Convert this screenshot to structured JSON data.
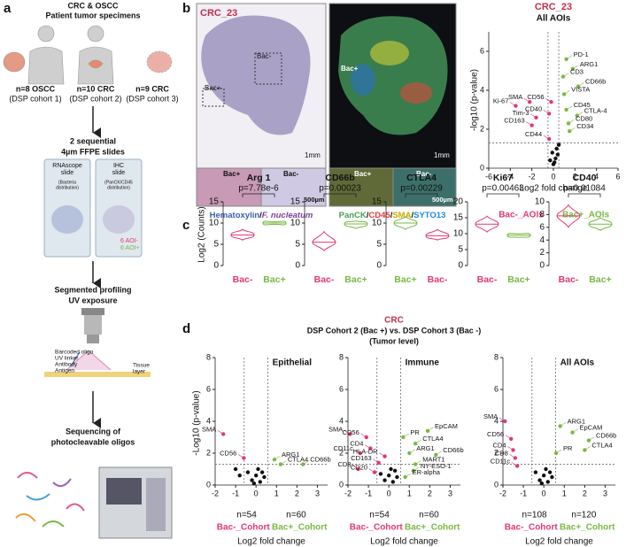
{
  "panel_a": {
    "label": "a",
    "title": [
      "CRC & OSCC",
      "Patient tumor specimens"
    ],
    "cohorts": [
      {
        "n": "n=8 OSCC",
        "sub": "(DSP cohort 1)"
      },
      {
        "n": "n=10 CRC",
        "sub": "(DSP cohort 2)"
      },
      {
        "n": "n=9 CRC",
        "sub": "(DSP cohort 3)"
      }
    ],
    "slides_title": [
      "2 sequential",
      "4µm FFPE slides"
    ],
    "slides": [
      {
        "name": [
          "RNAscope",
          "slide"
        ],
        "note": [
          "(Bacteria",
          "distribution)"
        ]
      },
      {
        "name": [
          "IHC",
          "slide"
        ],
        "note": [
          "(PanCK/CD45",
          "distribution)"
        ]
      }
    ],
    "aoi": [
      "6 AOI-",
      "6 AOI+"
    ],
    "profiling": [
      "Segmented profiling",
      "UV exposure"
    ],
    "diagram": [
      "Barcoded oligo",
      "UV linker",
      "Antibody",
      "Antigen",
      "Tissue",
      "layer"
    ],
    "sequencing": [
      "Sequencing of",
      "photocleavable oligos"
    ]
  },
  "panel_b": {
    "label": "b",
    "sample": "CRC_23",
    "he": {
      "bac_neg": "Bac-",
      "bac_pos": "Bac+",
      "scale1": "1mm",
      "inset_pos": "Bac+",
      "inset_neg": "Bac-",
      "scale2": "500µm"
    },
    "fluor": {
      "bac_pos": "Bac+",
      "scale1": "1mm",
      "inset_pos": "Bac+",
      "inset_neg": "Bac-",
      "scale2": "500µm"
    },
    "caption_he": [
      {
        "text": "Hematoxylin",
        "color": "#3b5ea8"
      },
      {
        "text": "/",
        "color": "#111111"
      },
      {
        "text": "F. nucleatum",
        "color": "#7b3f98"
      }
    ],
    "caption_fluor": [
      {
        "text": "PanCK",
        "color": "#3fa34d"
      },
      {
        "text": "/",
        "color": "#111111"
      },
      {
        "text": "CD45",
        "color": "#e53935"
      },
      {
        "text": "/",
        "color": "#111111"
      },
      {
        "text": "SMA",
        "color": "#c9a800"
      },
      {
        "text": "/",
        "color": "#111111"
      },
      {
        "text": "SYTO13",
        "color": "#1e88e5"
      }
    ],
    "volcano": {
      "type": "scatter",
      "title": "CRC_23",
      "subtitle": "All AOIs",
      "xlabel": "Log2 fold change",
      "ylabel": "-log10 (p-value)",
      "xlim": [
        -6,
        6
      ],
      "xticks": [
        -6,
        -4,
        -2,
        0,
        2,
        4,
        6
      ],
      "ylim": [
        0,
        7
      ],
      "yticks": [
        0,
        2,
        4,
        6
      ],
      "thresholds": {
        "x": [
          -0.5,
          0.5
        ],
        "y": 1.3
      },
      "legend": [
        "Bac-_AOIs",
        "Bac+_AOIs"
      ],
      "colors": {
        "down": "#e03a6e",
        "up": "#78b943",
        "ns": "#111111"
      },
      "points": [
        {
          "label": "PD-1",
          "x": 1.2,
          "y": 5.6
        },
        {
          "label": "ARG1",
          "x": 1.8,
          "y": 5.1
        },
        {
          "label": "CD3",
          "x": 0.9,
          "y": 4.7
        },
        {
          "label": "CD66b",
          "x": 2.3,
          "y": 4.2
        },
        {
          "label": "VISTA",
          "x": 1.0,
          "y": 3.8
        },
        {
          "label": "CD56",
          "x": -0.2,
          "y": 3.4
        },
        {
          "label": "CD45",
          "x": 1.2,
          "y": 3.0
        },
        {
          "label": "CTLA-4",
          "x": 2.2,
          "y": 2.7
        },
        {
          "label": "CD40",
          "x": -0.4,
          "y": 2.8
        },
        {
          "label": "CD80",
          "x": 1.4,
          "y": 2.3
        },
        {
          "label": "CD34",
          "x": 1.5,
          "y": 1.9
        },
        {
          "label": "Ki-67",
          "x": -3.5,
          "y": 3.2
        },
        {
          "label": "SMA",
          "x": -2.2,
          "y": 3.4
        },
        {
          "label": "Tim-3",
          "x": -1.6,
          "y": 2.6
        },
        {
          "label": "CD163",
          "x": -2.0,
          "y": 2.2
        },
        {
          "label": "CD44",
          "x": -0.4,
          "y": 1.5
        },
        {
          "x": 0,
          "y": 0.2
        },
        {
          "x": 0.2,
          "y": 0.5
        },
        {
          "x": -0.1,
          "y": 0.8
        },
        {
          "x": 0.3,
          "y": 1.0
        },
        {
          "x": 0.1,
          "y": 0.3
        },
        {
          "x": -0.3,
          "y": 0.4
        },
        {
          "x": 0.4,
          "y": 0.7
        },
        {
          "x": 0.5,
          "y": 1.2
        }
      ]
    }
  },
  "panel_c": {
    "label": "c",
    "ylabel": "Log2 (Counts)",
    "colors": {
      "Bac-": "#e03a6e",
      "Bac+": "#78b943"
    },
    "violins": [
      {
        "title": "Arg 1",
        "pvalue": "p=7.78e-6",
        "ylim": [
          0,
          15
        ],
        "yticks": [
          0,
          5,
          10,
          15
        ],
        "groups": [
          {
            "name": "Bac-",
            "min": 6,
            "median": 7.2,
            "max": 8.5
          },
          {
            "name": "Bac+",
            "min": 9.7,
            "median": 10,
            "max": 10.3
          }
        ]
      },
      {
        "title": "CD66b",
        "pvalue": "p=0.00023",
        "ylim": [
          0,
          15
        ],
        "yticks": [
          0,
          5,
          10,
          15
        ],
        "groups": [
          {
            "name": "Bac-",
            "min": 3.5,
            "median": 5.5,
            "max": 8
          },
          {
            "name": "Bac+",
            "min": 8.7,
            "median": 9.8,
            "max": 10.5
          }
        ]
      },
      {
        "title": "CTLA4",
        "pvalue": "p=0.00229",
        "ylim": [
          0,
          15
        ],
        "yticks": [
          0,
          5,
          10,
          15
        ],
        "groups": [
          {
            "name": "Bac+",
            "min": 8.5,
            "median": 10,
            "max": 11.5
          },
          {
            "name": "Bac-",
            "min": 6,
            "median": 7,
            "max": 8.5
          }
        ]
      },
      {
        "title": "Ki67",
        "pvalue": "p=0.00463",
        "ylim": [
          0,
          20
        ],
        "yticks": [
          0,
          5,
          10,
          15,
          20
        ],
        "groups": [
          {
            "name": "Bac-",
            "min": 10.5,
            "median": 13,
            "max": 15.5
          },
          {
            "name": "Bac+",
            "min": 8.8,
            "median": 9.5,
            "max": 10
          }
        ]
      },
      {
        "title": "CD40",
        "pvalue": "p=0.01084",
        "ylim": [
          0,
          10
        ],
        "yticks": [
          0,
          2,
          4,
          6,
          8,
          10
        ],
        "groups": [
          {
            "name": "Bac-",
            "min": 6,
            "median": 7.8,
            "max": 9.5
          },
          {
            "name": "Bac+",
            "min": 5.5,
            "median": 6.5,
            "max": 7.5
          }
        ]
      }
    ]
  },
  "panel_d": {
    "label": "d",
    "title": "CRC",
    "subtitle": "DSP Cohort 2 (Bac +) vs. DSP Cohort 3 (Bac -)",
    "note": "(Tumor level)",
    "ylabel": "-Log10 (p-value)",
    "charts": [
      {
        "type": "scatter",
        "subtitle": "Epithelial",
        "xlabel": "Log2 fold change",
        "xlim": [
          -2,
          3.5
        ],
        "xticks": [
          -2,
          -1,
          0,
          1,
          2,
          3
        ],
        "ylim": [
          0,
          8
        ],
        "yticks": [
          0,
          2,
          4,
          6,
          8
        ],
        "thresholds": {
          "x": [
            -0.58,
            0.58
          ],
          "y": 1.3
        },
        "n": [
          "n=54",
          "n=60"
        ],
        "legend": [
          "Bac-_Cohort",
          "Bac+_Cohort"
        ],
        "colors": {
          "down": "#e03a6e",
          "up": "#78b943",
          "ns": "#111111"
        },
        "points": [
          {
            "label": "SMA",
            "x": -1.6,
            "y": 3.2
          },
          {
            "label": "CD56",
            "x": -0.6,
            "y": 1.7
          },
          {
            "label": "ARG1",
            "x": 0.9,
            "y": 1.6
          },
          {
            "label": "CTLA4",
            "x": 1.2,
            "y": 1.3
          },
          {
            "label": "CD66b",
            "x": 2.3,
            "y": 1.3
          },
          {
            "x": -0.2,
            "y": 0.3
          },
          {
            "x": 0,
            "y": 0.6
          },
          {
            "x": 0.2,
            "y": 0.2
          },
          {
            "x": -0.4,
            "y": 0.8
          },
          {
            "x": 0.4,
            "y": 0.5
          },
          {
            "x": 0.1,
            "y": 1.0
          },
          {
            "x": -0.1,
            "y": 0.1
          },
          {
            "x": 0.3,
            "y": 0.8
          },
          {
            "x": -0.8,
            "y": 0.6
          },
          {
            "x": -1.0,
            "y": 1.0
          }
        ]
      },
      {
        "type": "scatter",
        "subtitle": "Immune",
        "xlabel": "Log2 fold change",
        "xlim": [
          -2,
          3.5
        ],
        "xticks": [
          -2,
          -1,
          0,
          1,
          2,
          3
        ],
        "ylim": [
          0,
          8
        ],
        "yticks": [
          0,
          2,
          4,
          6,
          8
        ],
        "thresholds": {
          "x": [
            -0.58,
            0.58
          ],
          "y": 1.3
        },
        "n": [
          "n=54",
          "n=60"
        ],
        "legend": [
          "Bac-_Cohort",
          "Bac+_Cohort"
        ],
        "colors": {
          "down": "#e03a6e",
          "up": "#78b943",
          "ns": "#111111"
        },
        "points": [
          {
            "label": "SMA",
            "x": -1.9,
            "y": 3.2
          },
          {
            "label": "CD56",
            "x": -1.1,
            "y": 3.0
          },
          {
            "label": "CD11c",
            "x": -1.4,
            "y": 2.0
          },
          {
            "label": "CD4",
            "x": -0.9,
            "y": 2.3
          },
          {
            "label": "HLA-DR",
            "x": -0.2,
            "y": 1.8
          },
          {
            "label": "CD163",
            "x": -0.5,
            "y": 1.4
          },
          {
            "label": "CD8",
            "x": -1.5,
            "y": 1.0
          },
          {
            "label": "CD20",
            "x": -0.7,
            "y": 0.8
          },
          {
            "label": "PR",
            "x": 0.7,
            "y": 3.0
          },
          {
            "label": "EpCAM",
            "x": 1.9,
            "y": 3.4
          },
          {
            "label": "CTLA4",
            "x": 1.3,
            "y": 2.6
          },
          {
            "label": "ARG1",
            "x": 1.0,
            "y": 2.0
          },
          {
            "label": "CD66b",
            "x": 2.3,
            "y": 1.9
          },
          {
            "label": "MART1",
            "x": 1.3,
            "y": 1.3
          },
          {
            "label": "NY-ESO-1",
            "x": 1.2,
            "y": 0.9
          },
          {
            "label": "ER-alpha",
            "x": 0.8,
            "y": 0.5
          },
          {
            "x": -0.2,
            "y": 0.3
          },
          {
            "x": 0,
            "y": 0.6
          },
          {
            "x": 0.2,
            "y": 0.2
          },
          {
            "x": -0.4,
            "y": 0.7
          },
          {
            "x": 0.4,
            "y": 0.5
          },
          {
            "x": 0.1,
            "y": 1.0
          },
          {
            "x": 0.3,
            "y": 0.9
          }
        ]
      },
      {
        "type": "scatter",
        "subtitle": "All AOIs",
        "xlabel": "Log2 fold change",
        "xlim": [
          -2,
          3.5
        ],
        "xticks": [
          -2,
          -1,
          0,
          1,
          2,
          3
        ],
        "ylim": [
          0,
          8
        ],
        "yticks": [
          0,
          2,
          4,
          6,
          8
        ],
        "thresholds": {
          "x": [
            -0.58,
            0.58
          ],
          "y": 1.3
        },
        "n": [
          "n=108",
          "n=120"
        ],
        "legend": [
          "Bac-_Cohort",
          "Bac+_Cohort"
        ],
        "colors": {
          "down": "#e03a6e",
          "up": "#78b943",
          "ns": "#111111"
        },
        "points": [
          {
            "label": "SMA",
            "x": -1.9,
            "y": 4.0
          },
          {
            "label": "CD56",
            "x": -1.6,
            "y": 2.9
          },
          {
            "label": "CD4",
            "x": -1.5,
            "y": 2.2
          },
          {
            "label": "CD8",
            "x": -1.4,
            "y": 1.7
          },
          {
            "label": "CD11c",
            "x": -1.3,
            "y": 1.2
          },
          {
            "label": "PR",
            "x": 0.6,
            "y": 2.0
          },
          {
            "label": "ARG1",
            "x": 0.8,
            "y": 3.7
          },
          {
            "label": "EpCAM",
            "x": 1.4,
            "y": 3.3
          },
          {
            "label": "CD66b",
            "x": 2.2,
            "y": 2.8
          },
          {
            "label": "CTLA4",
            "x": 2.0,
            "y": 2.2
          },
          {
            "x": -0.2,
            "y": 0.3
          },
          {
            "x": 0,
            "y": 0.6
          },
          {
            "x": 0.2,
            "y": 0.2
          },
          {
            "x": -0.4,
            "y": 0.8
          },
          {
            "x": 0.4,
            "y": 0.5
          },
          {
            "x": 0.1,
            "y": 1.0
          },
          {
            "x": -0.1,
            "y": 0.1
          },
          {
            "x": 0.3,
            "y": 0.8
          }
        ]
      }
    ]
  }
}
